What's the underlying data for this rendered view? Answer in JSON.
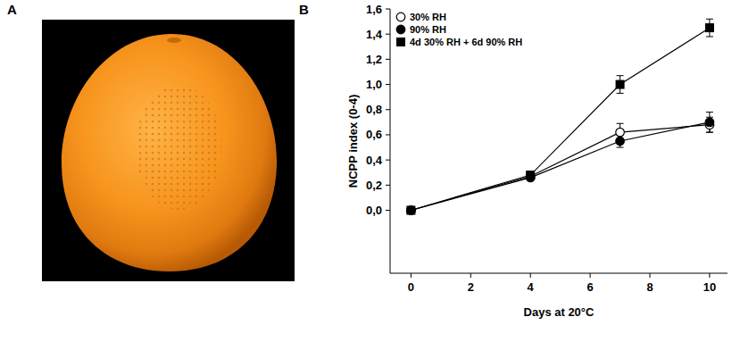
{
  "panel_labels": [
    "A",
    "B"
  ],
  "chart_data": {
    "type": "line",
    "x_label": "Days at 20°C",
    "y_label": "NCPP index (0-4)",
    "x": [
      0,
      4,
      7,
      10
    ],
    "xlim": [
      -0.7,
      10.6
    ],
    "xticks": [
      0,
      2,
      4,
      6,
      8,
      10
    ],
    "ylim": [
      -0.5,
      1.6
    ],
    "yticks": [
      {
        "value": 0,
        "label": "0,0"
      },
      {
        "value": 0.2,
        "label": "0,2"
      },
      {
        "value": 0.4,
        "label": "0,4"
      },
      {
        "value": 0.6,
        "label": "0,6"
      },
      {
        "value": 0.8,
        "label": "0,8"
      },
      {
        "value": 1.0,
        "label": "1,0"
      },
      {
        "value": 1.2,
        "label": "1,2"
      },
      {
        "value": 1.4,
        "label": "1,4"
      },
      {
        "value": 1.6,
        "label": "1,6"
      }
    ],
    "legend": "top-left",
    "grid": false,
    "series": [
      {
        "name": "30% RH",
        "color": "#000000",
        "marker": "circle-open",
        "line_style": "solid",
        "values": [
          0,
          0.27,
          0.62,
          0.68
        ],
        "errors": [
          0,
          0.02,
          0.07,
          0.06
        ]
      },
      {
        "name": "90% RH",
        "color": "#000000",
        "marker": "circle",
        "line_style": "solid",
        "values": [
          0,
          0.26,
          0.55,
          0.7
        ],
        "errors": [
          0,
          0.02,
          0.05,
          0.08
        ]
      },
      {
        "name": "4d 30% RH + 6d 90% RH",
        "color": "#000000",
        "marker": "square",
        "line_style": "solid",
        "values": [
          0,
          0.28,
          1.0,
          1.45
        ],
        "errors": [
          0,
          0.02,
          0.07,
          0.07
        ]
      }
    ]
  }
}
